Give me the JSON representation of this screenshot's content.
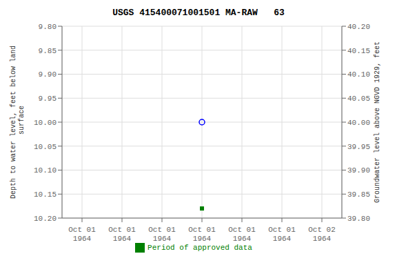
{
  "chart_data": {
    "type": "scatter",
    "title": "USGS 415400071001501 MA-RAW   63",
    "ylabel": "Depth to water level, feet below land\n surface",
    "y2label": "Groundwater level above NGVD 1929, feet",
    "categories": [
      "Oct 01\n1964",
      "Oct 01\n1964",
      "Oct 01\n1964",
      "Oct 01\n1964",
      "Oct 01\n1964",
      "Oct 01\n1964",
      "Oct 02\n1964"
    ],
    "series": [
      {
        "color": "blue",
        "marker": "circle",
        "values": [
          null,
          null,
          null,
          10.0,
          null,
          null,
          null
        ]
      },
      {
        "name": "Period of approved data",
        "color": "#008000",
        "marker": "square",
        "values": [
          null,
          null,
          null,
          10.18,
          null,
          null,
          null
        ]
      }
    ],
    "ylim": [
      10.2,
      9.8
    ],
    "yticks": [
      {
        "value": 9.8,
        "label": "9.80"
      },
      9.85,
      {
        "value": 9.9,
        "label": "9.90"
      },
      9.95,
      {
        "value": 10.0,
        "label": "10.00"
      },
      10.05,
      {
        "value": 10.1,
        "label": "10.10"
      },
      10.15,
      {
        "value": 10.2,
        "label": "10.20"
      }
    ],
    "y2lim": [
      39.8,
      40.2
    ],
    "y2ticks": [
      {
        "value": 40.2,
        "label": "40.20"
      },
      40.15,
      {
        "value": 40.1,
        "label": "40.10"
      },
      40.05,
      {
        "value": 40.0,
        "label": "40.00"
      },
      39.95,
      {
        "value": 39.9,
        "label": "39.90"
      },
      39.85,
      {
        "value": 39.8,
        "label": "39.80"
      }
    ],
    "grid": true,
    "legend": "bottom"
  }
}
